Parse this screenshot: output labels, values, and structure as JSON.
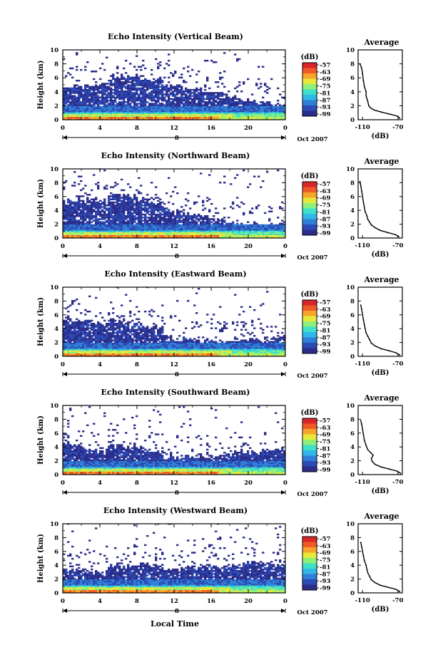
{
  "figure": {
    "xlabel": "Local Time"
  },
  "colors": {
    "scale": [
      "#2b2d8a",
      "#2d4bb5",
      "#2f7fd6",
      "#2fb8e8",
      "#3fe0c8",
      "#8ef07a",
      "#e6e93a",
      "#f7a52a",
      "#f05a26",
      "#d9262a"
    ]
  },
  "chart_data": [
    {
      "type": "heatmap",
      "title": "Echo Intensity (Vertical Beam)",
      "ylabel": "Height (km)",
      "yticks": [
        "0",
        "2",
        "4",
        "6",
        "8",
        "10"
      ],
      "ylim": [
        0,
        10
      ],
      "xticks": [
        "0",
        "4",
        "8",
        "12",
        "16",
        "20",
        "0"
      ],
      "xlim": [
        0,
        24
      ],
      "date_mark": "8",
      "date_label": "Oct 2007",
      "colorbar": {
        "label": "(dB)",
        "ticks": [
          "-57",
          "-63",
          "-69",
          "-75",
          "-81",
          "-87",
          "-93",
          "-99"
        ]
      },
      "profile": {
        "title": "Average",
        "xlabel": "(dB)",
        "xticks": [
          "-110",
          "-70"
        ],
        "xlim": [
          -115,
          -65
        ],
        "yticks": [
          "0",
          "2",
          "4",
          "6",
          "8",
          "10"
        ],
        "ylim": [
          0,
          10
        ],
        "x": [
          -68,
          -70,
          -79,
          -89,
          -97,
          -101,
          -103,
          -104,
          -105,
          -106,
          -106,
          -108,
          -109,
          -110,
          -111,
          -113
        ],
        "y": [
          0.2,
          0.5,
          0.8,
          1.1,
          1.4,
          1.7,
          2.0,
          2.6,
          3.0,
          3.4,
          4.0,
          4.8,
          5.6,
          6.6,
          7.4,
          8.0
        ]
      }
    },
    {
      "type": "heatmap",
      "title": "Echo Intensity (Northward Beam)",
      "ylabel": "Height (km)",
      "yticks": [
        "0",
        "2",
        "4",
        "6",
        "8",
        "10"
      ],
      "ylim": [
        0,
        10
      ],
      "xticks": [
        "0",
        "4",
        "8",
        "12",
        "16",
        "20",
        "0"
      ],
      "xlim": [
        0,
        24
      ],
      "date_mark": "8",
      "date_label": "Oct 2007",
      "colorbar": {
        "label": "(dB)",
        "ticks": [
          "-57",
          "-63",
          "-69",
          "-75",
          "-81",
          "-87",
          "-93",
          "-99"
        ]
      },
      "profile": {
        "title": "Average",
        "xlabel": "(dB)",
        "xticks": [
          "-110",
          "-70"
        ],
        "xlim": [
          -115,
          -65
        ],
        "x": [
          -69,
          -73,
          -82,
          -90,
          -96,
          -100,
          -102,
          -104,
          -105,
          -107,
          -108,
          -109,
          -110,
          -111,
          -112,
          -113
        ],
        "y": [
          0.2,
          0.5,
          0.8,
          1.1,
          1.5,
          1.9,
          2.3,
          2.7,
          3.2,
          3.8,
          4.5,
          5.2,
          6.0,
          6.8,
          7.6,
          8.2
        ]
      }
    },
    {
      "type": "heatmap",
      "title": "Echo Intensity (Eastward Beam)",
      "ylabel": "Height (km)",
      "yticks": [
        "0",
        "2",
        "4",
        "6",
        "8",
        "10"
      ],
      "ylim": [
        0,
        10
      ],
      "xticks": [
        "0",
        "4",
        "8",
        "12",
        "16",
        "20",
        "0"
      ],
      "xlim": [
        0,
        24
      ],
      "date_mark": "8",
      "date_label": "Oct 2007",
      "colorbar": {
        "label": "(dB)",
        "ticks": [
          "-57",
          "-63",
          "-69",
          "-75",
          "-81",
          "-87",
          "-93",
          "-99"
        ]
      },
      "profile": {
        "title": "Average",
        "xlabel": "(dB)",
        "xticks": [
          "-110",
          "-70"
        ],
        "xlim": [
          -115,
          -65
        ],
        "x": [
          -68,
          -72,
          -80,
          -89,
          -96,
          -100,
          -102,
          -104,
          -106,
          -107,
          -108,
          -109,
          -110,
          -111,
          -112
        ],
        "y": [
          0.2,
          0.5,
          0.8,
          1.1,
          1.5,
          1.9,
          2.4,
          2.9,
          3.4,
          4.0,
          4.6,
          5.3,
          6.0,
          6.8,
          7.4
        ]
      }
    },
    {
      "type": "heatmap",
      "title": "Echo Intensity (Southward Beam)",
      "ylabel": "Height (km)",
      "yticks": [
        "0",
        "2",
        "4",
        "6",
        "8",
        "10"
      ],
      "ylim": [
        0,
        10
      ],
      "xticks": [
        "0",
        "4",
        "8",
        "12",
        "16",
        "20",
        "0"
      ],
      "xlim": [
        0,
        24
      ],
      "date_mark": "8",
      "date_label": "Oct 2007",
      "colorbar": {
        "label": "(dB)",
        "ticks": [
          "-57",
          "-63",
          "-69",
          "-75",
          "-81",
          "-87",
          "-93",
          "-99"
        ]
      },
      "profile": {
        "title": "Average",
        "xlabel": "(dB)",
        "xticks": [
          "-110",
          "-70"
        ],
        "xlim": [
          -115,
          -65
        ],
        "x": [
          -67,
          -71,
          -80,
          -89,
          -96,
          -99,
          -100,
          -98,
          -101,
          -104,
          -106,
          -108,
          -109,
          -110,
          -111,
          -112
        ],
        "y": [
          0.2,
          0.5,
          0.8,
          1.1,
          1.5,
          1.9,
          2.3,
          2.8,
          3.2,
          3.6,
          4.2,
          5.0,
          5.8,
          6.6,
          7.3,
          7.8
        ]
      }
    },
    {
      "type": "heatmap",
      "title": "Echo Intensity (Westward Beam)",
      "ylabel": "Height (km)",
      "yticks": [
        "0",
        "2",
        "4",
        "6",
        "8",
        "10"
      ],
      "ylim": [
        0,
        10
      ],
      "xticks": [
        "0",
        "4",
        "8",
        "12",
        "16",
        "20",
        "0"
      ],
      "xlim": [
        0,
        24
      ],
      "date_mark": "8",
      "date_label": "Oct 2007",
      "colorbar": {
        "label": "(dB)",
        "ticks": [
          "-57",
          "-63",
          "-69",
          "-75",
          "-81",
          "-87",
          "-93",
          "-99"
        ]
      },
      "profile": {
        "title": "Average",
        "xlabel": "(dB)",
        "xticks": [
          "-110",
          "-70"
        ],
        "xlim": [
          -115,
          -65
        ],
        "x": [
          -68,
          -72,
          -81,
          -90,
          -96,
          -100,
          -102,
          -104,
          -105,
          -106,
          -108,
          -109,
          -110,
          -111,
          -112
        ],
        "y": [
          0.2,
          0.5,
          0.8,
          1.1,
          1.5,
          1.9,
          2.4,
          2.9,
          3.4,
          4.0,
          4.7,
          5.4,
          6.0,
          6.7,
          7.3
        ]
      }
    }
  ]
}
